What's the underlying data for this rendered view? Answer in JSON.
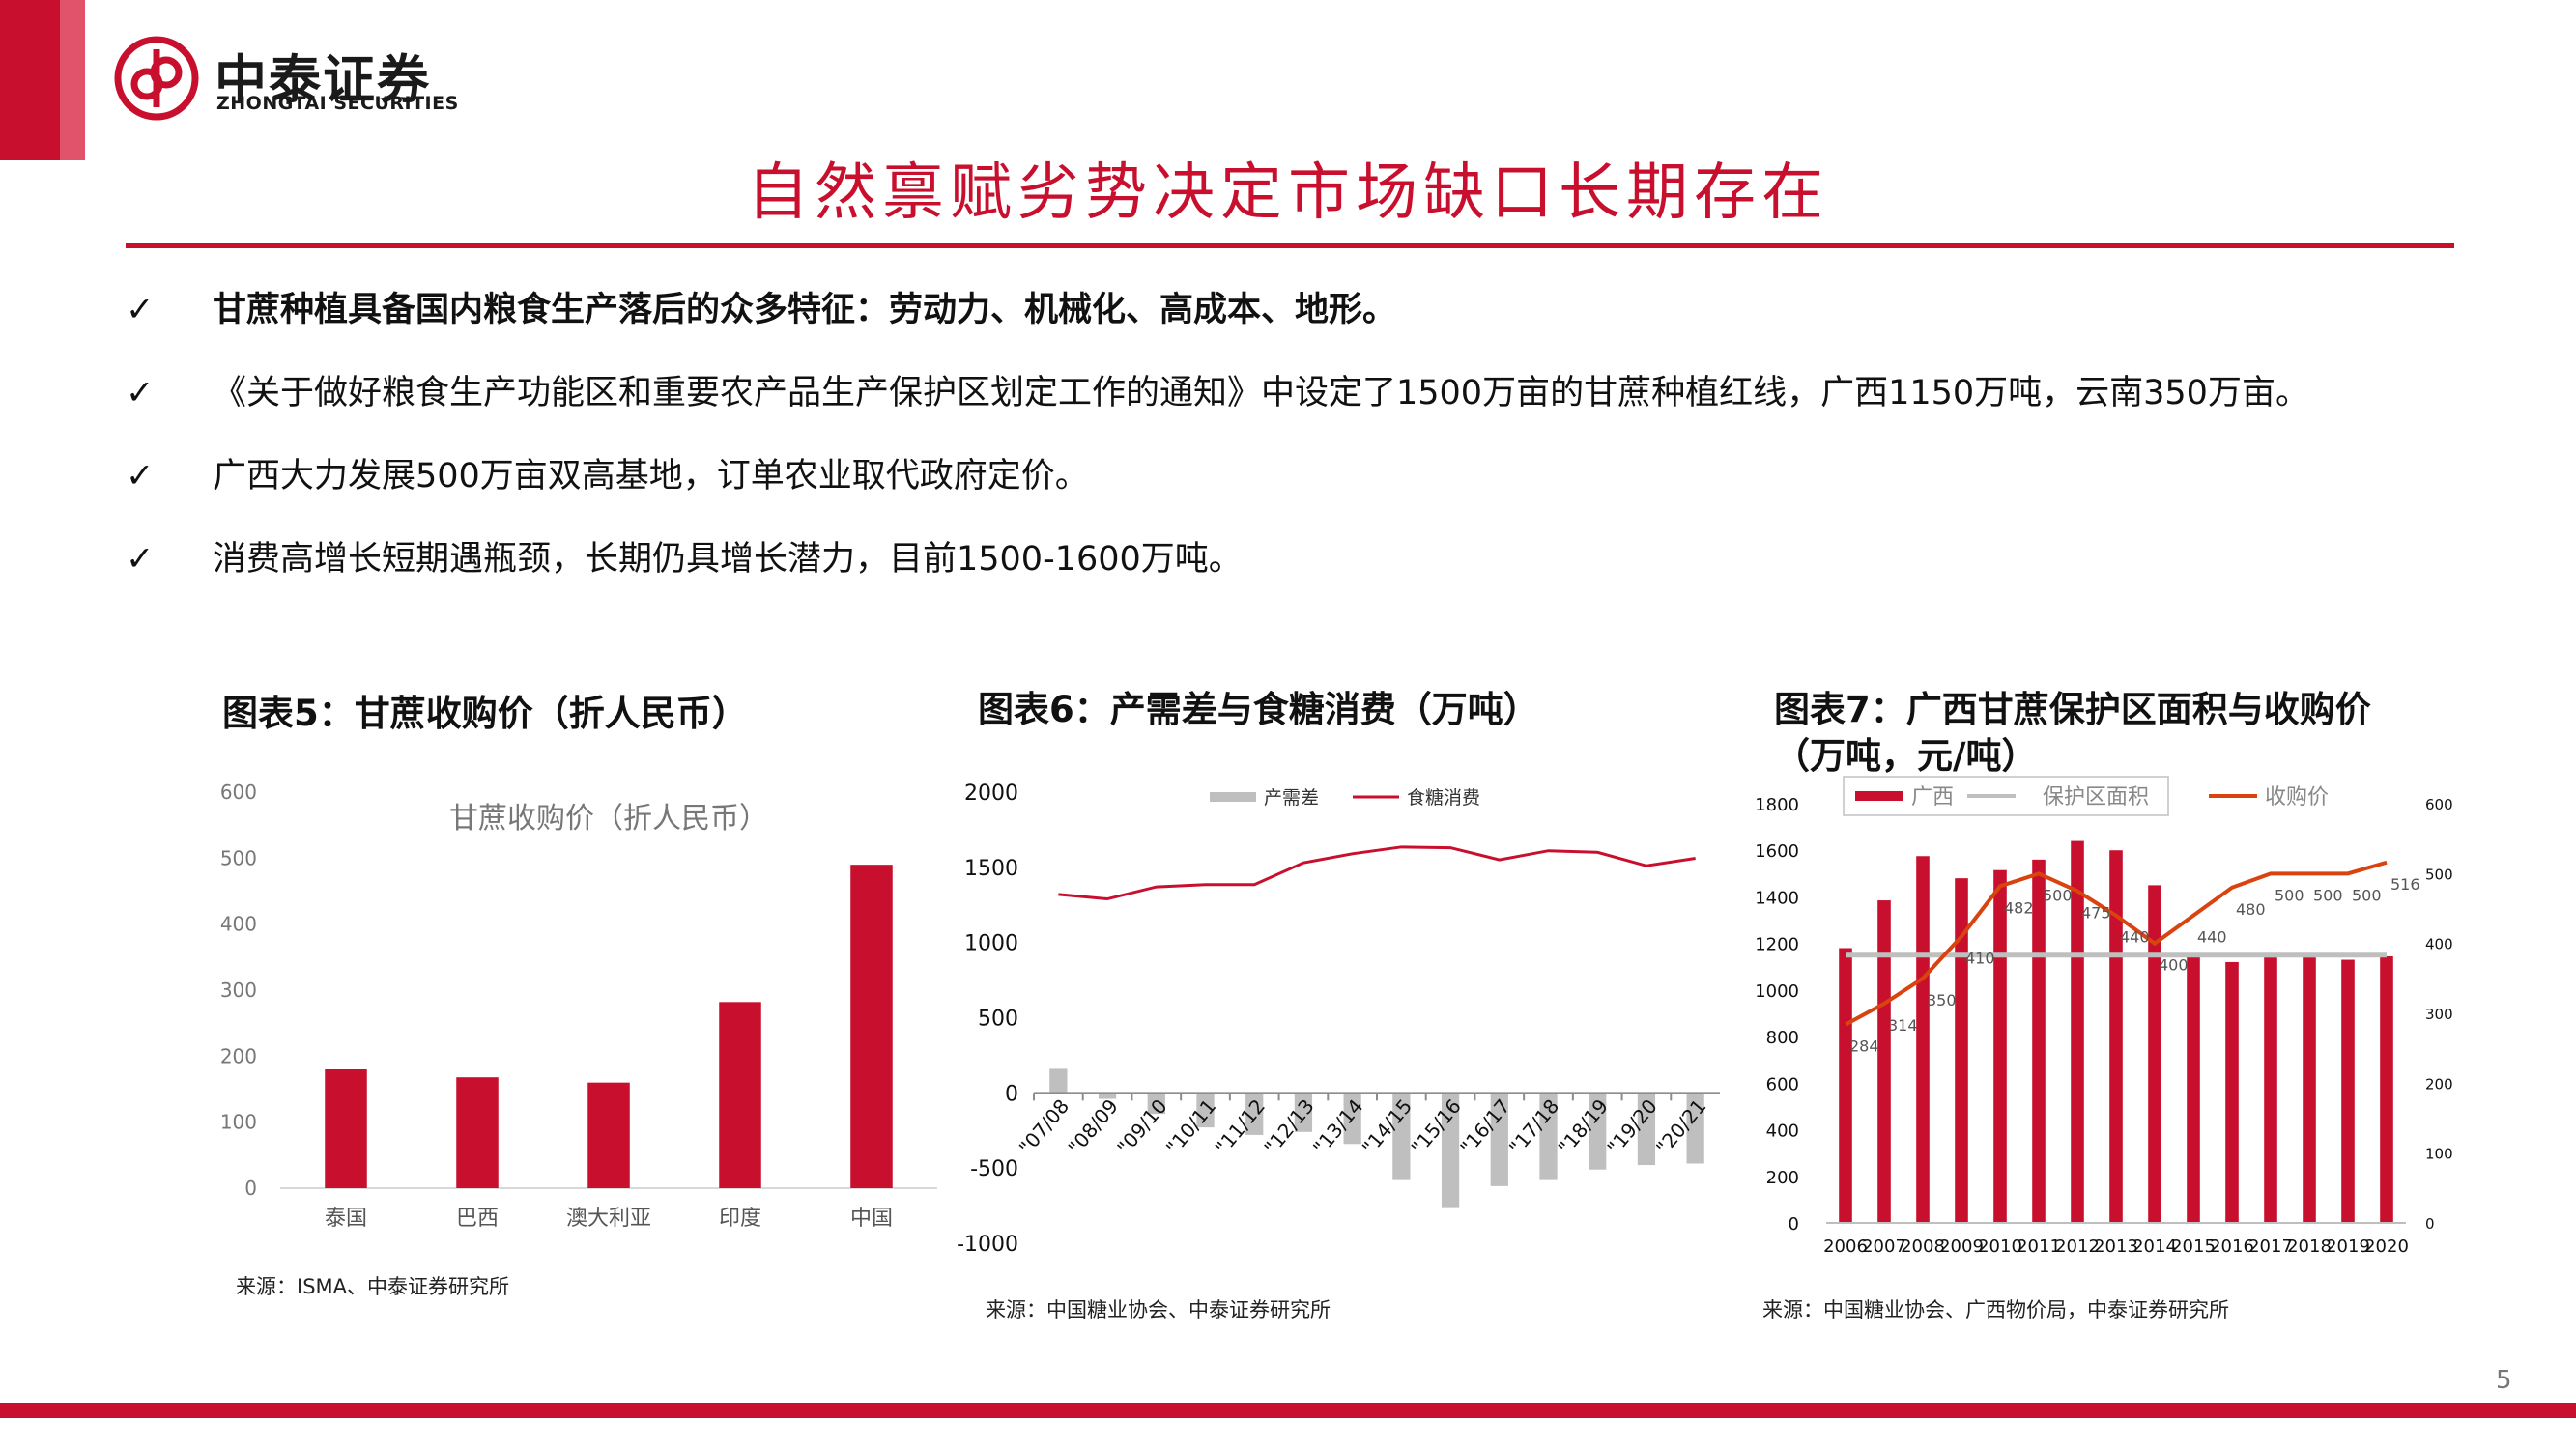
{
  "brand": {
    "name_cn": "中泰证券",
    "name_en": "ZHONGTAI SECURITIES",
    "color": "#c8102e"
  },
  "title": "自然禀赋劣势决定市场缺口长期存在",
  "bullets": [
    {
      "mark": "✓",
      "text": "甘蔗种植具备国内粮食生产落后的众多特征：劳动力、机械化、高成本、地形。"
    },
    {
      "mark": "✓",
      "text": "《关于做好粮食生产功能区和重要农产品生产保护区划定工作的通知》中设定了1500万亩的甘蔗种植红线，广西1150万吨，云南350万亩。"
    },
    {
      "mark": "✓",
      "text": "广西大力发展500万亩双高基地，订单农业取代政府定价。"
    },
    {
      "mark": "✓",
      "text": "消费高增长短期遇瓶颈，长期仍具增长潜力，目前1500-1600万吨。"
    }
  ],
  "charts": {
    "c5": {
      "heading": "图表5：甘蔗收购价（折人民币）",
      "source": "来源：ISMA、中泰证券研究所"
    },
    "c6": {
      "heading": "图表6：产需差与食糖消费（万吨）",
      "source": "来源：中国糖业协会、中泰证券研究所"
    },
    "c7": {
      "heading_line1": "图表7：广西甘蔗保护区面积与收购价",
      "heading_line2": "（万吨，元/吨）",
      "source": "来源：中国糖业协会、广西物价局，中泰证券研究所"
    }
  },
  "page_number": "5",
  "chart_data": [
    {
      "type": "bar",
      "title": "甘蔗收购价（折人民币）",
      "categories": [
        "泰国",
        "巴西",
        "澳大利亚",
        "印度",
        "中国"
      ],
      "values": [
        180,
        168,
        160,
        282,
        490
      ],
      "ylim": [
        0,
        600
      ],
      "yticks": [
        0,
        100,
        200,
        300,
        400,
        500,
        600
      ],
      "color": "#c8102e",
      "grid": false
    },
    {
      "type": "bar",
      "categories": [
        "07/08",
        "08/09",
        "09/10",
        "10/11",
        "11/12",
        "12/13",
        "13/14",
        "14/15",
        "15/16",
        "16/17",
        "17/18",
        "18/19",
        "19/20",
        "20/21"
      ],
      "series": [
        {
          "name": "产需差",
          "kind": "bar",
          "color": "#bfbfbf",
          "values": [
            160,
            -40,
            -140,
            -230,
            -280,
            -260,
            -340,
            -580,
            -760,
            -620,
            -580,
            -510,
            -480,
            -470
          ]
        },
        {
          "name": "食糖消费",
          "kind": "line",
          "color": "#c8102e",
          "values": [
            1320,
            1290,
            1370,
            1385,
            1385,
            1530,
            1590,
            1635,
            1630,
            1550,
            1610,
            1600,
            1510,
            1560
          ]
        }
      ],
      "ylim": [
        -1000,
        2000
      ],
      "yticks": [
        -1000,
        -500,
        0,
        500,
        1000,
        1500,
        2000
      ],
      "legend": "top"
    },
    {
      "type": "bar",
      "categories": [
        "2006",
        "2007",
        "2008",
        "2009",
        "2010",
        "2011",
        "2012",
        "2013",
        "2014",
        "2015",
        "2016",
        "2017",
        "2018",
        "2019",
        "2020"
      ],
      "series": [
        {
          "name": "广西",
          "kind": "bar",
          "axis": "left",
          "color": "#c8102e",
          "values": [
            1180,
            1385,
            1575,
            1480,
            1515,
            1560,
            1640,
            1600,
            1450,
            1150,
            1120,
            1140,
            1140,
            1130,
            1145
          ]
        },
        {
          "name": "保护区面积",
          "kind": "line",
          "axis": "left",
          "color": "#bfbfbf",
          "values": [
            1150,
            1150,
            1150,
            1150,
            1150,
            1150,
            1150,
            1150,
            1150,
            1150,
            1150,
            1150,
            1150,
            1150,
            1150
          ]
        },
        {
          "name": "收购价",
          "kind": "line",
          "axis": "right",
          "color": "#d9430f",
          "values": [
            284,
            314,
            350,
            410,
            482,
            500,
            475,
            440,
            400,
            440,
            480,
            500,
            500,
            500,
            516
          ],
          "labels": [
            "284",
            "314",
            "350",
            "410",
            "482",
            "500",
            "475",
            "440",
            "400",
            "440",
            "480",
            "500",
            "500",
            "500",
            "516"
          ]
        }
      ],
      "ylim_left": [
        0,
        1800
      ],
      "yticks_left": [
        0,
        200,
        400,
        600,
        800,
        1000,
        1200,
        1400,
        1600,
        1800
      ],
      "ylim_right": [
        0,
        600
      ],
      "yticks_right": [
        0,
        100,
        200,
        300,
        400,
        500,
        600
      ],
      "legend": "top"
    }
  ]
}
